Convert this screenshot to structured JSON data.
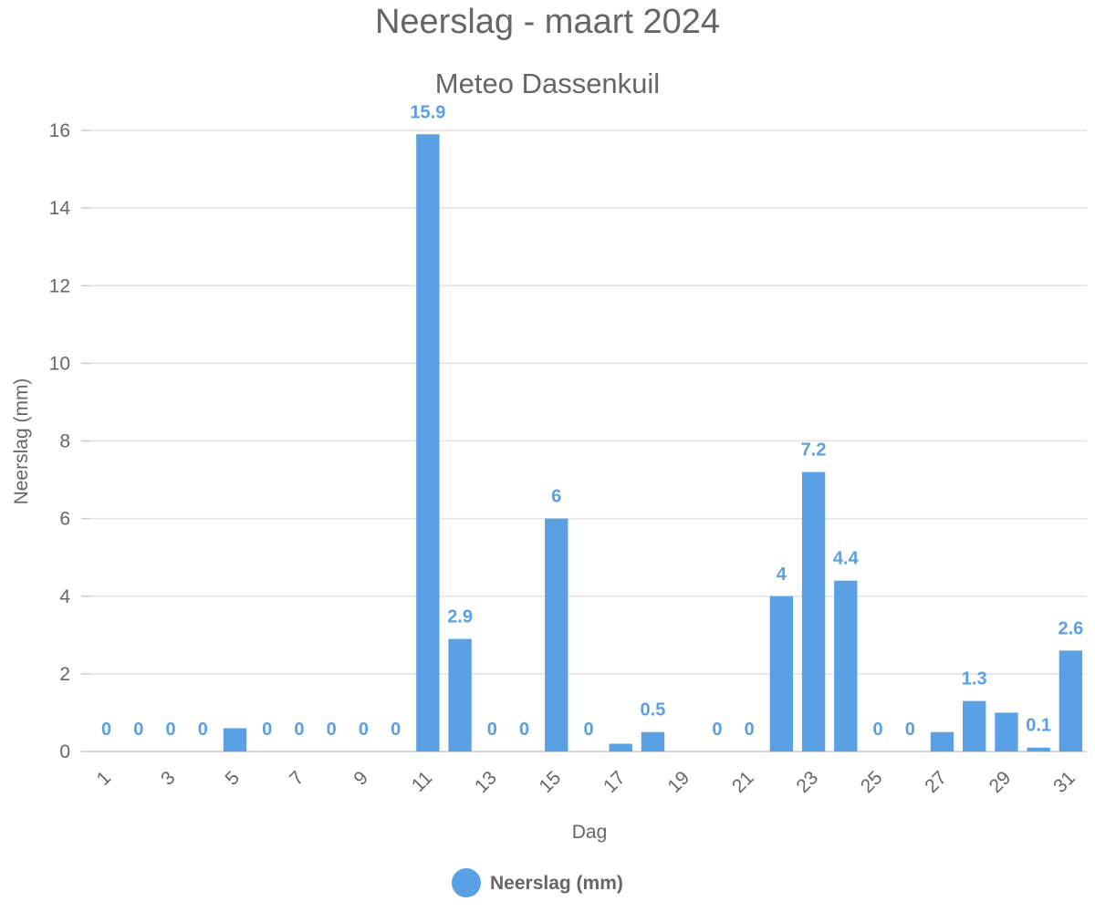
{
  "chart_data": {
    "type": "bar",
    "title": "Neerslag - maart 2024",
    "subtitle": "Meteo Dassenkuil",
    "xlabel": "Dag",
    "ylabel": "Neerslag (mm)",
    "ylim": [
      0,
      16
    ],
    "y_ticks": [
      "0",
      "2",
      "4",
      "6",
      "8",
      "10",
      "12",
      "14",
      "16"
    ],
    "categories": [
      "1",
      "2",
      "3",
      "4",
      "5",
      "6",
      "7",
      "8",
      "9",
      "10",
      "11",
      "12",
      "13",
      "14",
      "15",
      "16",
      "17",
      "18",
      "19",
      "20",
      "21",
      "22",
      "23",
      "24",
      "25",
      "26",
      "27",
      "28",
      "29",
      "30",
      "31"
    ],
    "x_tick_labels": [
      "1",
      "3",
      "5",
      "7",
      "9",
      "11",
      "13",
      "15",
      "17",
      "19",
      "21",
      "23",
      "25",
      "27",
      "29",
      "31"
    ],
    "series": [
      {
        "name": "Neerslag (mm)",
        "color": "#5aa0e4",
        "values": [
          0,
          0,
          0,
          0,
          0.6,
          0,
          0,
          0,
          0,
          0,
          15.9,
          2.9,
          0,
          0,
          6,
          0,
          0.2,
          0.5,
          0,
          0,
          0,
          4,
          7.2,
          4.4,
          0,
          0,
          0.5,
          1.3,
          1,
          0.1,
          2.6
        ],
        "data_labels": [
          "0",
          "0",
          "0",
          "0",
          "",
          "0",
          "0",
          "0",
          "0",
          "0",
          "15.9",
          "2.9",
          "0",
          "0",
          "6",
          "0",
          "",
          "0.5",
          "",
          "0",
          "0",
          "4",
          "7.2",
          "4.4",
          "0",
          "0",
          "",
          "1.3",
          "",
          "0.1",
          "2.6"
        ]
      }
    ],
    "grid": true,
    "legend_position": "bottom-center"
  }
}
